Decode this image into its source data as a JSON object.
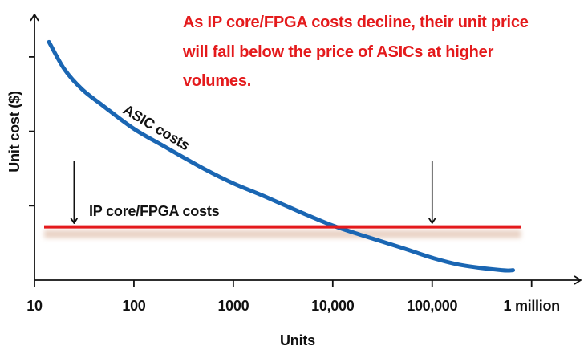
{
  "chart_data": {
    "type": "line",
    "title": "",
    "xlabel": "Units",
    "ylabel": "Unit cost ($)",
    "x_scale": "log",
    "xlim": [
      10,
      2000000
    ],
    "ylim": [
      0,
      100
    ],
    "grid": false,
    "x_ticks": [
      {
        "value": 10,
        "label": "10"
      },
      {
        "value": 100,
        "label": "100"
      },
      {
        "value": 1000,
        "label": "1000"
      },
      {
        "value": 10000,
        "label": "10,000"
      },
      {
        "value": 100000,
        "label": "100,000"
      },
      {
        "value": 1000000,
        "label": "1 million"
      }
    ],
    "y_ticks": [
      {
        "value": 30
      },
      {
        "value": 60
      },
      {
        "value": 90
      }
    ],
    "series": [
      {
        "name": "ASIC costs",
        "color": "#1a66b3",
        "x": [
          14,
          20,
          30,
          50,
          100,
          200,
          500,
          1000,
          2000,
          5000,
          10000,
          20000,
          50000,
          100000,
          200000,
          500000,
          650000
        ],
        "y": [
          96,
          85,
          77,
          70,
          61,
          54,
          45,
          39,
          34,
          27,
          22,
          18,
          13,
          9,
          6,
          4,
          4
        ]
      },
      {
        "name": "IP core/FPGA costs",
        "color": "#e41a1c",
        "x": [
          10,
          650000
        ],
        "y": [
          21.5,
          21.5
        ]
      }
    ],
    "annotations": [
      {
        "text": "As IP core/FPGA costs decline, their unit price will fall below the price of ASICs at higher volumes.",
        "color": "#e41a1c"
      }
    ],
    "arrows": [
      {
        "x": 25,
        "from_y": 48,
        "to_y": 23
      },
      {
        "x": 100000,
        "from_y": 48,
        "to_y": 23
      }
    ],
    "colors": {
      "asic": "#1a66b3",
      "fpga": "#e41a1c",
      "fpga_shadow": "#e9d2c4",
      "axis": "#111111",
      "annotation": "#e41a1c"
    }
  }
}
